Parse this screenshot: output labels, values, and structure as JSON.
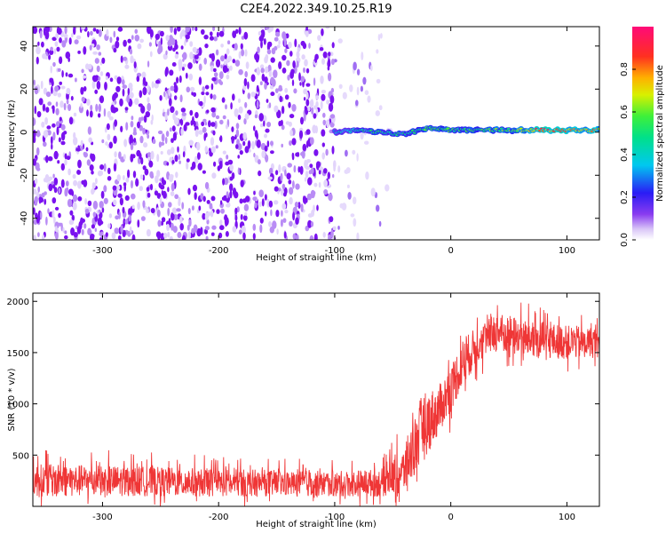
{
  "title": "C2E4.2022.349.10.25.R19",
  "chart_data": [
    {
      "type": "heatmap",
      "xlabel": "Height of straight line (km)",
      "ylabel": "Frequency (Hz)",
      "xlim": [
        -360,
        128
      ],
      "ylim": [
        -50,
        49
      ],
      "x_ticks": [
        -300,
        -200,
        -100,
        0,
        100
      ],
      "x_tick_labels": [
        "-300",
        "-200",
        "-100",
        "0",
        "100"
      ],
      "y_ticks": [
        -40,
        -20,
        0,
        20,
        40
      ],
      "y_tick_labels": [
        "-40",
        "-20",
        "0",
        "20",
        "40"
      ],
      "colorbar": {
        "label": "Normalized spectral amplitude",
        "range": [
          0,
          1
        ],
        "ticks": [
          0.0,
          0.2,
          0.4,
          0.6,
          0.8
        ],
        "tick_labels": [
          "0.0",
          "0.2",
          "0.4",
          "0.6",
          "0.8"
        ],
        "colormap": "white-purple-blue-cyan-green-yellow-orange-red-pink"
      },
      "regions": [
        {
          "x_range": [
            -360,
            -100
          ],
          "freq_range": [
            -50,
            49
          ],
          "amplitude": 0.05,
          "description": "broadband noise"
        },
        {
          "x_range": [
            -100,
            -40
          ],
          "freq_range": [
            -50,
            49
          ],
          "amplitude": 0.02,
          "description": "fading noise"
        },
        {
          "x_range": [
            -100,
            128
          ],
          "freq_center": 1,
          "amplitude": 0.6,
          "description": "narrow signal line near 0 Hz"
        }
      ],
      "signal_line": {
        "x": [
          -100,
          -80,
          -60,
          -40,
          -20,
          0,
          20,
          40,
          60,
          80,
          100,
          128
        ],
        "freq": [
          0,
          1,
          0,
          -1,
          2,
          1,
          1,
          1,
          1,
          1,
          1,
          1
        ],
        "amplitude": [
          0.35,
          0.45,
          0.5,
          0.5,
          0.6,
          0.55,
          0.55,
          0.6,
          0.65,
          0.85,
          0.8,
          0.75
        ]
      }
    },
    {
      "type": "line",
      "xlabel": "Height of straight line (km)",
      "ylabel": "SNR (10 * v/v)",
      "xlim": [
        -360,
        128
      ],
      "ylim": [
        0,
        2080
      ],
      "x_ticks": [
        -300,
        -200,
        -100,
        0,
        100
      ],
      "x_tick_labels": [
        "-300",
        "-200",
        "-100",
        "0",
        "100"
      ],
      "y_ticks": [
        500,
        1000,
        1500,
        2000
      ],
      "y_tick_labels": [
        "500",
        "1000",
        "1500",
        "2000"
      ],
      "color": "#ef3636",
      "series_envelope": {
        "x": [
          -360,
          -300,
          -200,
          -100,
          -60,
          -40,
          -25,
          -10,
          0,
          10,
          25,
          40,
          60,
          80,
          100,
          128
        ],
        "min": [
          0,
          0,
          0,
          0,
          0,
          0,
          50,
          500,
          700,
          950,
          1250,
          1350,
          1300,
          1300,
          1300,
          1300
        ],
        "max": [
          600,
          550,
          500,
          450,
          500,
          800,
          1300,
          1350,
          1550,
          1800,
          1900,
          2050,
          2000,
          1950,
          1900,
          1850
        ],
        "mean": [
          250,
          250,
          230,
          220,
          230,
          350,
          750,
          950,
          1150,
          1400,
          1600,
          1700,
          1650,
          1620,
          1600,
          1600
        ]
      }
    }
  ]
}
